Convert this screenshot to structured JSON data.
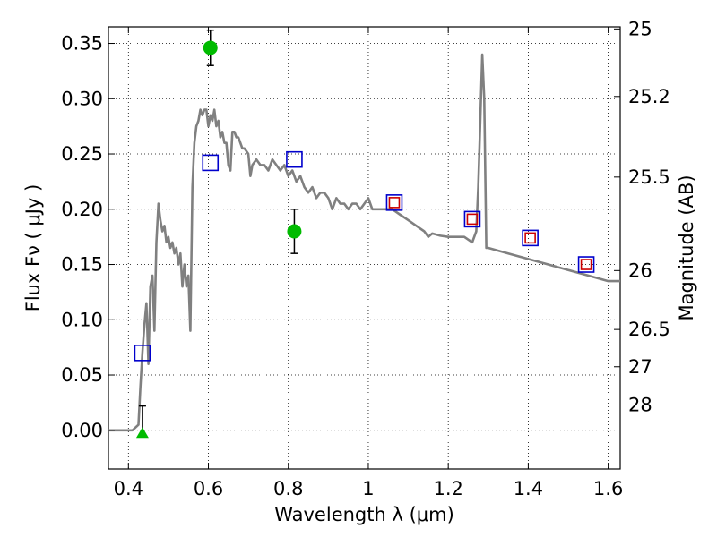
{
  "chart_data": {
    "type": "line",
    "title": "",
    "xlabel": "Wavelength  λ (μm)",
    "ylabel": "Flux  Fν ( μJy )",
    "ylabel_right": "Magnitude (AB)",
    "xlim": [
      0.35,
      1.63
    ],
    "ylim": [
      -0.035,
      0.365
    ],
    "grid": true,
    "x_ticks": [
      0.4,
      0.6,
      0.8,
      1.0,
      1.2,
      1.4,
      1.6
    ],
    "x_tick_labels": [
      "0.4",
      "0.6",
      "0.8",
      "1",
      "1.2",
      "1.4",
      "1.6"
    ],
    "y_ticks": [
      0.0,
      0.05,
      0.1,
      0.15,
      0.2,
      0.25,
      0.3,
      0.35
    ],
    "y_tick_labels": [
      "0.00",
      "0.05",
      "0.10",
      "0.15",
      "0.20",
      "0.25",
      "0.30",
      "0.35"
    ],
    "right_ticks": [
      {
        "flux": 0.3631,
        "label": "25"
      },
      {
        "flux": 0.302,
        "label": "25.2"
      },
      {
        "flux": 0.2291,
        "label": "25.5"
      },
      {
        "flux": 0.1445,
        "label": "26"
      },
      {
        "flux": 0.0912,
        "label": "26.5"
      },
      {
        "flux": 0.0575,
        "label": "27"
      },
      {
        "flux": 0.0229,
        "label": "28"
      }
    ],
    "series": [
      {
        "type": "line",
        "color": "#808080",
        "points": [
          [
            0.35,
            0.0
          ],
          [
            0.41,
            0.0
          ],
          [
            0.425,
            0.005
          ],
          [
            0.43,
            0.04
          ],
          [
            0.435,
            0.07
          ],
          [
            0.44,
            0.095
          ],
          [
            0.445,
            0.115
          ],
          [
            0.45,
            0.06
          ],
          [
            0.455,
            0.13
          ],
          [
            0.46,
            0.14
          ],
          [
            0.465,
            0.09
          ],
          [
            0.47,
            0.17
          ],
          [
            0.475,
            0.205
          ],
          [
            0.48,
            0.19
          ],
          [
            0.485,
            0.18
          ],
          [
            0.49,
            0.185
          ],
          [
            0.495,
            0.17
          ],
          [
            0.5,
            0.175
          ],
          [
            0.505,
            0.165
          ],
          [
            0.51,
            0.17
          ],
          [
            0.515,
            0.16
          ],
          [
            0.52,
            0.165
          ],
          [
            0.525,
            0.15
          ],
          [
            0.53,
            0.16
          ],
          [
            0.535,
            0.13
          ],
          [
            0.54,
            0.15
          ],
          [
            0.545,
            0.13
          ],
          [
            0.55,
            0.14
          ],
          [
            0.555,
            0.09
          ],
          [
            0.56,
            0.22
          ],
          [
            0.565,
            0.26
          ],
          [
            0.57,
            0.275
          ],
          [
            0.575,
            0.28
          ],
          [
            0.58,
            0.29
          ],
          [
            0.585,
            0.285
          ],
          [
            0.59,
            0.29
          ],
          [
            0.595,
            0.29
          ],
          [
            0.6,
            0.275
          ],
          [
            0.605,
            0.285
          ],
          [
            0.61,
            0.28
          ],
          [
            0.615,
            0.29
          ],
          [
            0.62,
            0.275
          ],
          [
            0.625,
            0.28
          ],
          [
            0.63,
            0.265
          ],
          [
            0.635,
            0.27
          ],
          [
            0.64,
            0.26
          ],
          [
            0.645,
            0.26
          ],
          [
            0.65,
            0.24
          ],
          [
            0.655,
            0.235
          ],
          [
            0.66,
            0.27
          ],
          [
            0.665,
            0.27
          ],
          [
            0.67,
            0.265
          ],
          [
            0.675,
            0.265
          ],
          [
            0.68,
            0.26
          ],
          [
            0.685,
            0.255
          ],
          [
            0.69,
            0.255
          ],
          [
            0.7,
            0.25
          ],
          [
            0.705,
            0.23
          ],
          [
            0.71,
            0.24
          ],
          [
            0.72,
            0.245
          ],
          [
            0.73,
            0.24
          ],
          [
            0.74,
            0.24
          ],
          [
            0.75,
            0.235
          ],
          [
            0.76,
            0.245
          ],
          [
            0.77,
            0.24
          ],
          [
            0.78,
            0.235
          ],
          [
            0.79,
            0.24
          ],
          [
            0.8,
            0.23
          ],
          [
            0.81,
            0.235
          ],
          [
            0.82,
            0.225
          ],
          [
            0.83,
            0.23
          ],
          [
            0.84,
            0.22
          ],
          [
            0.85,
            0.215
          ],
          [
            0.86,
            0.22
          ],
          [
            0.87,
            0.21
          ],
          [
            0.88,
            0.215
          ],
          [
            0.89,
            0.215
          ],
          [
            0.9,
            0.21
          ],
          [
            0.91,
            0.2
          ],
          [
            0.92,
            0.21
          ],
          [
            0.93,
            0.205
          ],
          [
            0.94,
            0.205
          ],
          [
            0.95,
            0.2
          ],
          [
            0.96,
            0.205
          ],
          [
            0.97,
            0.205
          ],
          [
            0.98,
            0.2
          ],
          [
            0.99,
            0.205
          ],
          [
            1.0,
            0.21
          ],
          [
            1.01,
            0.2
          ],
          [
            1.02,
            0.2
          ],
          [
            1.04,
            0.2
          ],
          [
            1.06,
            0.2
          ],
          [
            1.08,
            0.195
          ],
          [
            1.1,
            0.19
          ],
          [
            1.12,
            0.185
          ],
          [
            1.14,
            0.18
          ],
          [
            1.15,
            0.175
          ],
          [
            1.16,
            0.178
          ],
          [
            1.18,
            0.176
          ],
          [
            1.2,
            0.175
          ],
          [
            1.22,
            0.175
          ],
          [
            1.24,
            0.175
          ],
          [
            1.26,
            0.17
          ],
          [
            1.27,
            0.18
          ],
          [
            1.275,
            0.22
          ],
          [
            1.28,
            0.28
          ],
          [
            1.285,
            0.34
          ],
          [
            1.29,
            0.3
          ],
          [
            1.295,
            0.165
          ],
          [
            1.3,
            0.165
          ],
          [
            1.35,
            0.16
          ],
          [
            1.4,
            0.155
          ],
          [
            1.45,
            0.15
          ],
          [
            1.5,
            0.145
          ],
          [
            1.55,
            0.14
          ],
          [
            1.6,
            0.135
          ],
          [
            1.63,
            0.135
          ]
        ]
      },
      {
        "type": "scatter",
        "marker": "square",
        "color": "#0000cc",
        "points": [
          [
            0.435,
            0.07
          ],
          [
            0.605,
            0.242
          ],
          [
            0.815,
            0.245
          ],
          [
            1.065,
            0.206
          ],
          [
            1.26,
            0.191
          ],
          [
            1.405,
            0.174
          ],
          [
            1.545,
            0.15
          ]
        ]
      },
      {
        "type": "scatter",
        "marker": "square",
        "color": "#cc0000",
        "points": [
          [
            1.065,
            0.206
          ],
          [
            1.26,
            0.191
          ],
          [
            1.405,
            0.174
          ],
          [
            1.545,
            0.15
          ]
        ]
      },
      {
        "type": "scatter",
        "marker": "circle",
        "color": "#00bb00",
        "points": [
          [
            0.605,
            0.346
          ],
          [
            0.815,
            0.18
          ]
        ],
        "errors": [
          0.016,
          0.02
        ]
      },
      {
        "type": "scatter",
        "marker": "triangle-up",
        "color": "#00bb00",
        "points": [
          [
            0.435,
            -0.002
          ]
        ],
        "errors_upper": [
          0.024
        ]
      }
    ]
  }
}
